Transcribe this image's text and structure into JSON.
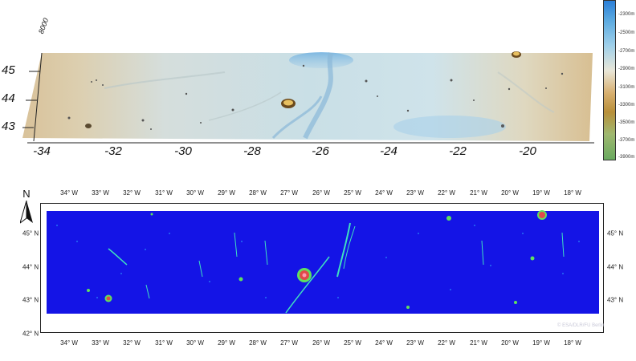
{
  "top_view": {
    "x_ticks": [
      "-34",
      "-32",
      "-30",
      "-28",
      "-26",
      "-24",
      "-22",
      "-20"
    ],
    "y_ticks": [
      "45",
      "44",
      "43"
    ],
    "z_tick": "8000",
    "legend": {
      "labels": [
        "-2300m",
        "-2500m",
        "-2700m",
        "-2900m",
        "-3100m",
        "-3300m",
        "-3500m",
        "-3700m",
        "-3900m"
      ],
      "colors": [
        "#2b7fd8",
        "#5aa9e0",
        "#9fd0ea",
        "#e9e6d8",
        "#d8b070",
        "#b88f3a",
        "#9fb870",
        "#6aaa60"
      ]
    }
  },
  "bottom_map": {
    "north_label": "N",
    "lon_labels": [
      "34° W",
      "33° W",
      "32° W",
      "31° W",
      "30° W",
      "29° W",
      "28° W",
      "27° W",
      "26° W",
      "25° W",
      "24° W",
      "23° W",
      "22° W",
      "21° W",
      "20° W",
      "19° W",
      "18° W"
    ],
    "lat_labels_left": [
      "45° N",
      "44° N",
      "43° N",
      "42° N"
    ],
    "lat_labels_right": [
      "45° N",
      "44° N",
      "43° N"
    ],
    "copyright": "© ESA/DLR/FU Berlin",
    "colors": {
      "background": "#1414e6",
      "feature": "#3fe0c0",
      "crater_ring": "#5fe05f",
      "crater_core": "#e04a4a"
    }
  }
}
